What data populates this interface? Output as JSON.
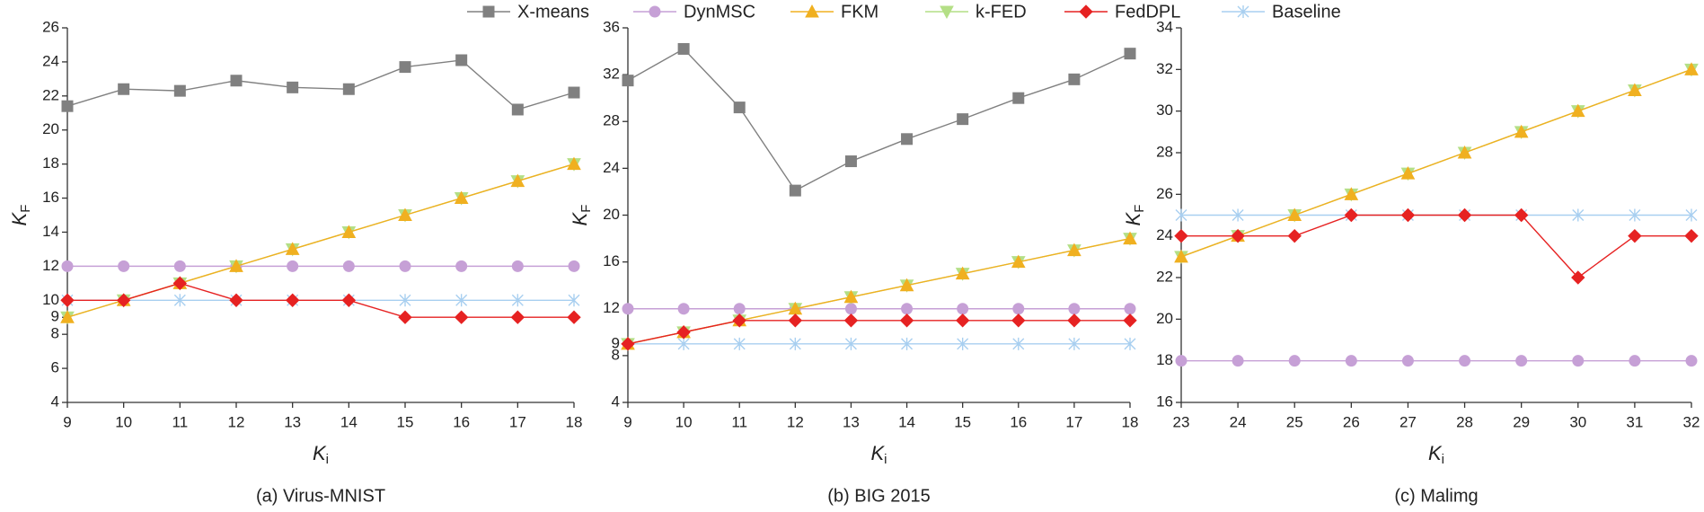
{
  "legend": [
    {
      "name": "X-means",
      "color": "#808080",
      "marker": "square"
    },
    {
      "name": "DynMSC",
      "color": "#c6a0d6",
      "marker": "circle"
    },
    {
      "name": "FKM",
      "color": "#f0b020",
      "marker": "triangle-up"
    },
    {
      "name": "k-FED",
      "color": "#b4df86",
      "marker": "triangle-down"
    },
    {
      "name": "FedDPL",
      "color": "#e62222",
      "marker": "diamond"
    },
    {
      "name": "Baseline",
      "color": "#a8cff0",
      "marker": "asterisk"
    }
  ],
  "chart_data": [
    {
      "type": "line",
      "caption": "(a) Virus-MNIST",
      "xlabel": "K",
      "xlabel_sub": "i",
      "ylabel": "K",
      "ylabel_sub": "F",
      "x": [
        9,
        10,
        11,
        12,
        13,
        14,
        15,
        16,
        17,
        18
      ],
      "xlim": [
        9,
        18
      ],
      "xticks": [
        9,
        10,
        11,
        12,
        13,
        14,
        15,
        16,
        17,
        18
      ],
      "ylim": [
        4,
        26
      ],
      "yticks": [
        4,
        6,
        8,
        9,
        10,
        12,
        14,
        16,
        18,
        20,
        22,
        24,
        26
      ],
      "series": [
        {
          "values": [
            21.4,
            22.4,
            22.3,
            22.9,
            22.5,
            22.4,
            23.7,
            24.1,
            21.2,
            22.2
          ]
        },
        {
          "values": [
            12,
            12,
            12,
            12,
            12,
            12,
            12,
            12,
            12,
            12
          ]
        },
        {
          "values": [
            9,
            10,
            11,
            12,
            13,
            14,
            15,
            16,
            17,
            18
          ]
        },
        {
          "values": [
            9,
            10,
            11,
            12,
            13,
            14,
            15,
            16,
            17,
            18
          ]
        },
        {
          "values": [
            10,
            10,
            11,
            10,
            10,
            10,
            9,
            9,
            9,
            9
          ]
        },
        {
          "values": [
            10,
            10,
            10,
            10,
            10,
            10,
            10,
            10,
            10,
            10
          ]
        }
      ]
    },
    {
      "type": "line",
      "caption": "(b) BIG 2015",
      "xlabel": "K",
      "xlabel_sub": "i",
      "ylabel": "K",
      "ylabel_sub": "F",
      "x": [
        9,
        10,
        11,
        12,
        13,
        14,
        15,
        16,
        17,
        18
      ],
      "xlim": [
        9,
        18
      ],
      "xticks": [
        9,
        10,
        11,
        12,
        13,
        14,
        15,
        16,
        17,
        18
      ],
      "ylim": [
        4,
        36
      ],
      "yticks": [
        4,
        8,
        9,
        12,
        16,
        20,
        24,
        28,
        32,
        36
      ],
      "series": [
        {
          "values": [
            31.5,
            34.2,
            29.2,
            22.1,
            24.6,
            26.5,
            28.2,
            30,
            31.6,
            33.8
          ]
        },
        {
          "values": [
            12,
            12,
            12,
            12,
            12,
            12,
            12,
            12,
            12,
            12
          ]
        },
        {
          "values": [
            9,
            10,
            11,
            12,
            13,
            14,
            15,
            16,
            17,
            18
          ]
        },
        {
          "values": [
            9,
            10,
            11,
            12,
            13,
            14,
            15,
            16,
            17,
            18
          ]
        },
        {
          "values": [
            9,
            10,
            11,
            11,
            11,
            11,
            11,
            11,
            11,
            11
          ]
        },
        {
          "values": [
            9,
            9,
            9,
            9,
            9,
            9,
            9,
            9,
            9,
            9
          ]
        }
      ]
    },
    {
      "type": "line",
      "caption": "(c) Malimg",
      "xlabel": "K",
      "xlabel_sub": "i",
      "ylabel": "K",
      "ylabel_sub": "F",
      "x": [
        23,
        24,
        25,
        26,
        27,
        28,
        29,
        30,
        31,
        32
      ],
      "xlim": [
        23,
        32
      ],
      "xticks": [
        23,
        24,
        25,
        26,
        27,
        28,
        29,
        30,
        31,
        32
      ],
      "ylim": [
        16,
        34
      ],
      "yticks": [
        16,
        18,
        20,
        22,
        24,
        26,
        28,
        30,
        32,
        34
      ],
      "series": [
        {
          "values": [
            null,
            null,
            null,
            null,
            null,
            null,
            null,
            null,
            null,
            null
          ]
        },
        {
          "values": [
            18,
            18,
            18,
            18,
            18,
            18,
            18,
            18,
            18,
            18
          ]
        },
        {
          "values": [
            23,
            24,
            25,
            26,
            27,
            28,
            29,
            30,
            31,
            32
          ]
        },
        {
          "values": [
            23,
            24,
            25,
            26,
            27,
            28,
            29,
            30,
            31,
            32
          ]
        },
        {
          "values": [
            24,
            24,
            24,
            25,
            25,
            25,
            25,
            22,
            24,
            24
          ]
        },
        {
          "values": [
            25,
            25,
            25,
            25,
            25,
            25,
            25,
            25,
            25,
            25
          ]
        }
      ]
    }
  ]
}
